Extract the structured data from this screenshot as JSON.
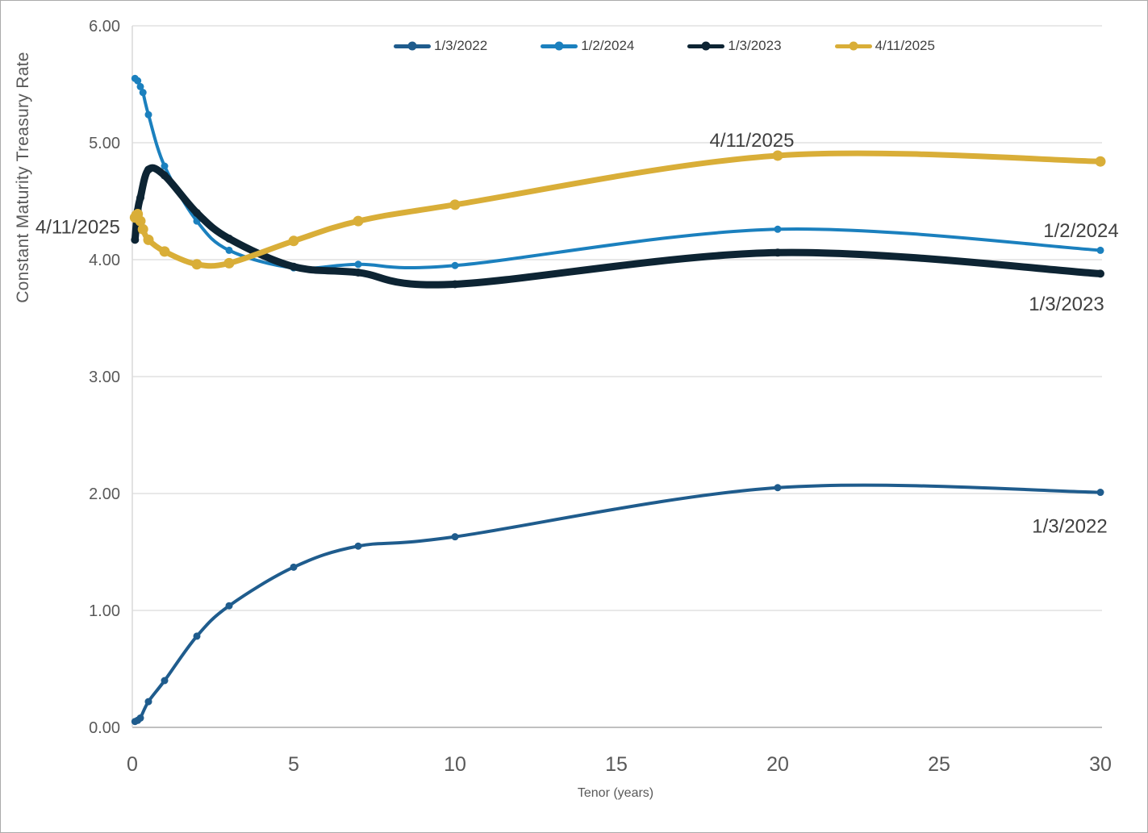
{
  "figure": {
    "background": "#ffffff",
    "border_color": "#ABABAB"
  },
  "colors": {
    "gridline": "#D9D9D9",
    "axis_line": "#ABABAB",
    "tick_label": "#595959",
    "axis_title": "#595959",
    "annotation": "#404040",
    "legend_label": "#404040"
  },
  "chart_data": {
    "type": "line",
    "title": "",
    "xlabel": "Tenor (years)",
    "ylabel": "Constant Maturity Treasury Rate",
    "xlim": [
      0,
      30
    ],
    "ylim": [
      0,
      6
    ],
    "xticks": [
      0,
      5,
      10,
      15,
      20,
      25,
      30
    ],
    "yticks": [
      0,
      1,
      2,
      3,
      4,
      5,
      6
    ],
    "ytick_labels": [
      "0.00",
      "1.00",
      "2.00",
      "3.00",
      "4.00",
      "5.00",
      "6.00"
    ],
    "grid": true,
    "legend_position": "top",
    "series": [
      {
        "name": "1/3/2022",
        "color": "#1F5C8D",
        "line_width": 4,
        "marker_radius": 4.5,
        "x": [
          0.083,
          0.167,
          0.25,
          0.5,
          1,
          2,
          3,
          5,
          7,
          10,
          20,
          30
        ],
        "y": [
          0.05,
          0.06,
          0.08,
          0.22,
          0.4,
          0.78,
          1.04,
          1.37,
          1.55,
          1.63,
          2.05,
          2.01
        ]
      },
      {
        "name": "1/2/2024",
        "color": "#1B80BE",
        "line_width": 4,
        "marker_radius": 4.5,
        "x": [
          0.083,
          0.167,
          0.25,
          0.33,
          0.5,
          1,
          2,
          3,
          5,
          7,
          10,
          20,
          30
        ],
        "y": [
          5.55,
          5.53,
          5.48,
          5.43,
          5.24,
          4.8,
          4.33,
          4.08,
          3.93,
          3.96,
          3.95,
          4.26,
          4.08
        ]
      },
      {
        "name": "1/3/2023",
        "color": "#0D2433",
        "line_width": 9,
        "marker_radius": 5,
        "x": [
          0.083,
          0.167,
          0.25,
          0.5,
          1,
          2,
          3,
          5,
          7,
          10,
          20,
          30
        ],
        "y": [
          4.17,
          4.42,
          4.53,
          4.77,
          4.72,
          4.4,
          4.18,
          3.94,
          3.89,
          3.79,
          4.06,
          3.88
        ]
      },
      {
        "name": "4/11/2025",
        "color": "#D9AE38",
        "line_width": 7,
        "marker_radius": 6.5,
        "x": [
          0.083,
          0.125,
          0.167,
          0.25,
          0.33,
          0.5,
          1,
          2,
          3,
          5,
          7,
          10,
          20,
          30
        ],
        "y": [
          4.36,
          4.38,
          4.39,
          4.33,
          4.26,
          4.17,
          4.07,
          3.96,
          3.97,
          4.16,
          4.33,
          4.47,
          4.89,
          4.84
        ]
      }
    ],
    "annotations": [
      {
        "text": "4/11/2025",
        "x": 19.2,
        "y": 5.02
      },
      {
        "text": "4/11/2025",
        "x": -1.69,
        "y": 4.28
      },
      {
        "text": "1/2/2024",
        "x": 29.4,
        "y": 4.25
      },
      {
        "text": "1/3/2023",
        "x": 28.95,
        "y": 3.62
      },
      {
        "text": "1/3/2022",
        "x": 29.05,
        "y": 1.72
      }
    ]
  }
}
